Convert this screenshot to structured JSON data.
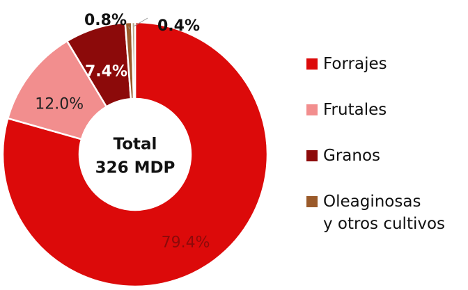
{
  "chart_data": {
    "type": "donut",
    "center_label": [
      "Total",
      "326 MDP"
    ],
    "categories": [
      "Forrajes",
      "Frutales",
      "Granos",
      "Oleaginosas\ny otros cultivos",
      null
    ],
    "values": [
      79.4,
      12.0,
      7.4,
      0.8,
      0.4
    ],
    "value_labels": [
      "79.4%",
      "12.0%",
      "7.4%",
      "0.8%",
      "0.4%"
    ],
    "colors": [
      "#dc0a0a",
      "#f28e8e",
      "#8c0a0a",
      "#9a5a2a",
      "#b9a98a"
    ],
    "legend": "right"
  }
}
